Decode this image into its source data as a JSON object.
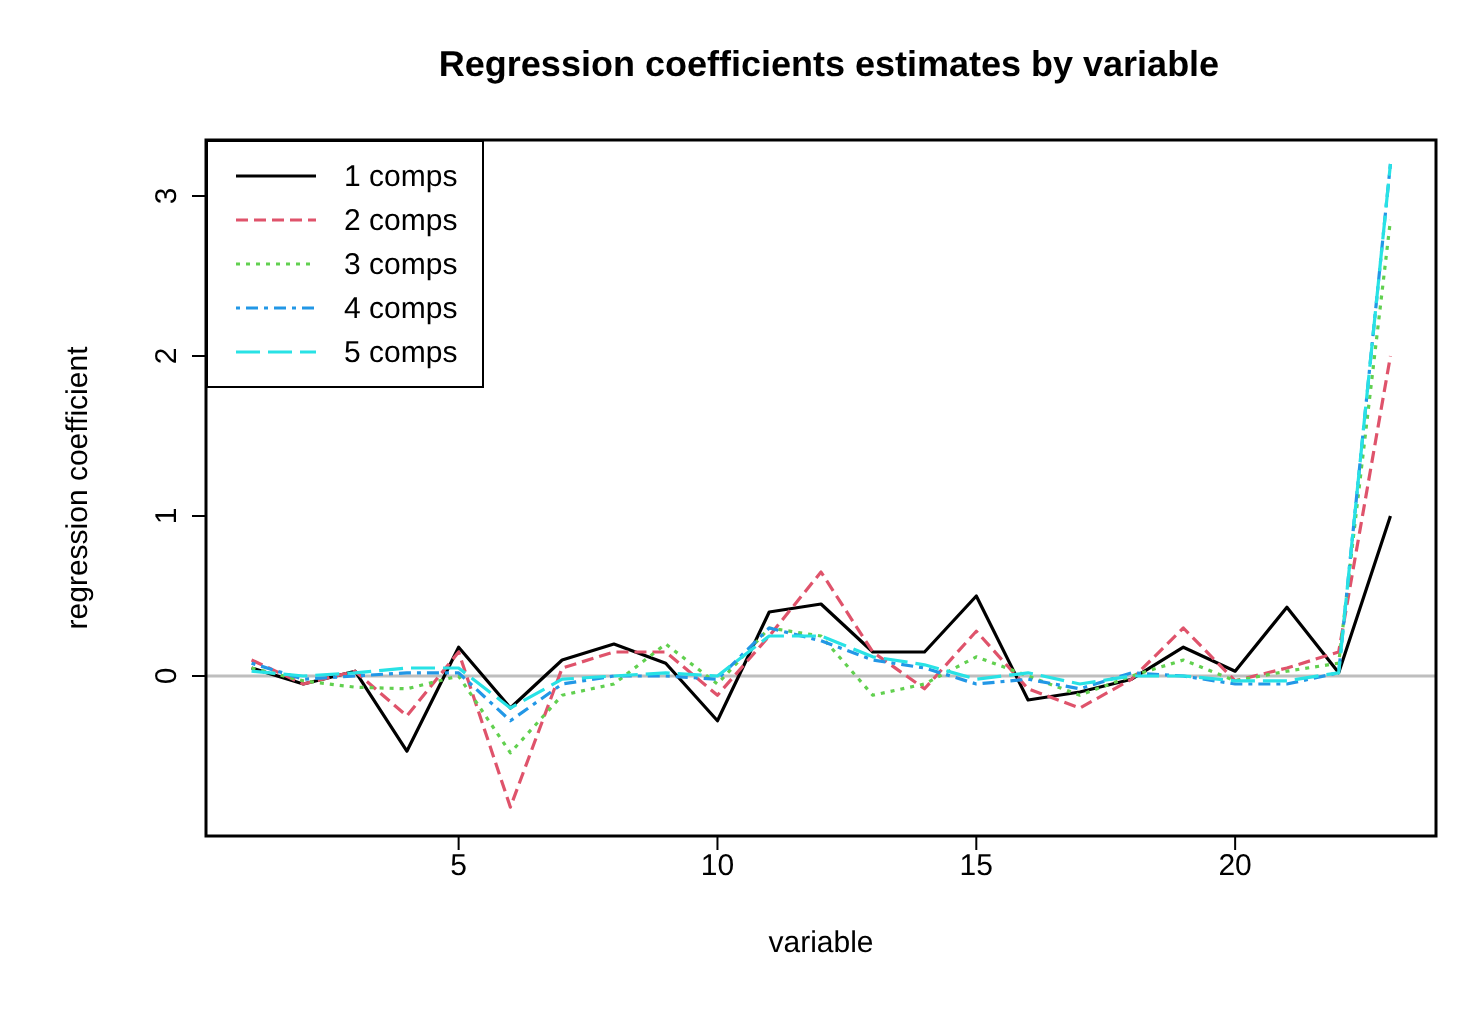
{
  "chart_data": {
    "type": "line",
    "title": "Regression coefficients estimates by variable",
    "xlabel": "variable",
    "ylabel": "regression coefficient",
    "x": [
      1,
      2,
      3,
      4,
      5,
      6,
      7,
      8,
      9,
      10,
      11,
      12,
      13,
      14,
      15,
      16,
      17,
      18,
      19,
      20,
      21,
      22,
      23
    ],
    "series": [
      {
        "name": "1 comps",
        "color": "#000000",
        "line_style": "solid",
        "values": [
          0.05,
          -0.05,
          0.03,
          -0.47,
          0.18,
          -0.2,
          0.1,
          0.2,
          0.08,
          -0.28,
          0.4,
          0.45,
          0.15,
          0.15,
          0.5,
          -0.15,
          -0.1,
          -0.02,
          0.18,
          0.03,
          0.43,
          0.02,
          1.0
        ]
      },
      {
        "name": "2 comps",
        "color": "#df536b",
        "line_style": "dashed",
        "values": [
          0.1,
          -0.05,
          0.03,
          -0.25,
          0.15,
          -0.82,
          0.05,
          0.15,
          0.15,
          -0.12,
          0.25,
          0.65,
          0.15,
          -0.08,
          0.28,
          -0.08,
          -0.2,
          -0.02,
          0.3,
          -0.03,
          0.05,
          0.15,
          2.0
        ]
      },
      {
        "name": "3 comps",
        "color": "#61d04f",
        "line_style": "dotted",
        "values": [
          0.05,
          -0.03,
          -0.07,
          -0.08,
          0.0,
          -0.48,
          -0.12,
          -0.05,
          0.2,
          -0.05,
          0.3,
          0.25,
          -0.12,
          -0.05,
          0.12,
          0.0,
          -0.12,
          0.0,
          0.1,
          -0.03,
          0.03,
          0.08,
          2.85
        ]
      },
      {
        "name": "4 comps",
        "color": "#2297e6",
        "line_style": "dashdot",
        "values": [
          0.08,
          -0.02,
          0.0,
          0.02,
          0.02,
          -0.28,
          -0.05,
          0.0,
          0.0,
          -0.02,
          0.3,
          0.22,
          0.1,
          0.05,
          -0.05,
          -0.02,
          -0.08,
          0.02,
          0.0,
          -0.05,
          -0.05,
          0.02,
          3.2
        ]
      },
      {
        "name": "5 comps",
        "color": "#28e2e5",
        "line_style": "longdash",
        "values": [
          0.03,
          0.0,
          0.02,
          0.05,
          0.05,
          -0.2,
          -0.02,
          0.0,
          0.02,
          0.0,
          0.25,
          0.25,
          0.12,
          0.07,
          -0.02,
          0.02,
          -0.05,
          0.0,
          0.0,
          -0.03,
          -0.03,
          0.02,
          3.2
        ]
      }
    ],
    "xlim": [
      0.12,
      23.88
    ],
    "xticks": [
      5,
      10,
      15,
      20
    ],
    "ylim": [
      -1,
      3.35
    ],
    "yticks": [
      0,
      1,
      2,
      3
    ],
    "ref_lines": [
      {
        "axis": "y",
        "value": 0,
        "color": "#bebebe"
      }
    ],
    "grid": false,
    "legend": "top left",
    "marker": "none"
  }
}
